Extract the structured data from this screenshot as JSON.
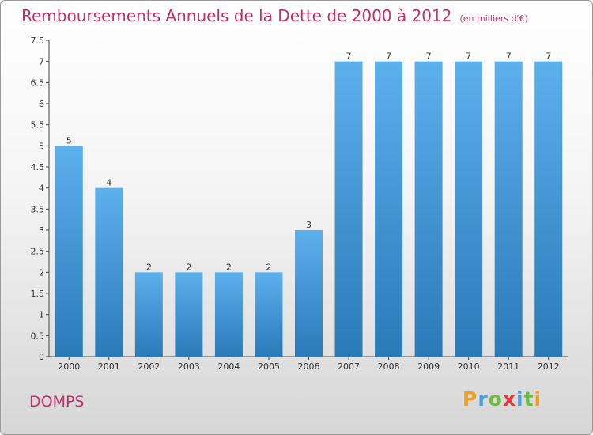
{
  "title": "Remboursements Annuels de la Dette de 2000 à 2012",
  "unit": "(en milliers d'€)",
  "commune": "DOMPS",
  "logo": {
    "letters": [
      "P",
      "r",
      "o",
      "x",
      "i",
      "t",
      "i"
    ],
    "colors": [
      "#f0a020",
      "#4aa0e0",
      "#6cbe3c",
      "#e03a3a",
      "#4aa0e0",
      "#6cbe3c",
      "#f0a020"
    ]
  },
  "colors": {
    "bar_light": "#5cb0ec",
    "bar_dark": "#2a7ab8",
    "accent": "#c0306b"
  },
  "chart_data": {
    "type": "bar",
    "categories": [
      "2000",
      "2001",
      "2002",
      "2003",
      "2004",
      "2005",
      "2006",
      "2007",
      "2008",
      "2009",
      "2010",
      "2011",
      "2012"
    ],
    "values": [
      5,
      4,
      2,
      2,
      2,
      2,
      3,
      7,
      7,
      7,
      7,
      7,
      7
    ],
    "ylim": [
      0,
      7.5
    ],
    "yticks": [
      "0",
      "0.5",
      "1",
      "1.5",
      "2",
      "2.5",
      "3",
      "3.5",
      "4",
      "4.5",
      "5",
      "5.5",
      "6",
      "6.5",
      "7",
      "7.5"
    ],
    "grid": false,
    "data_labels": true
  }
}
